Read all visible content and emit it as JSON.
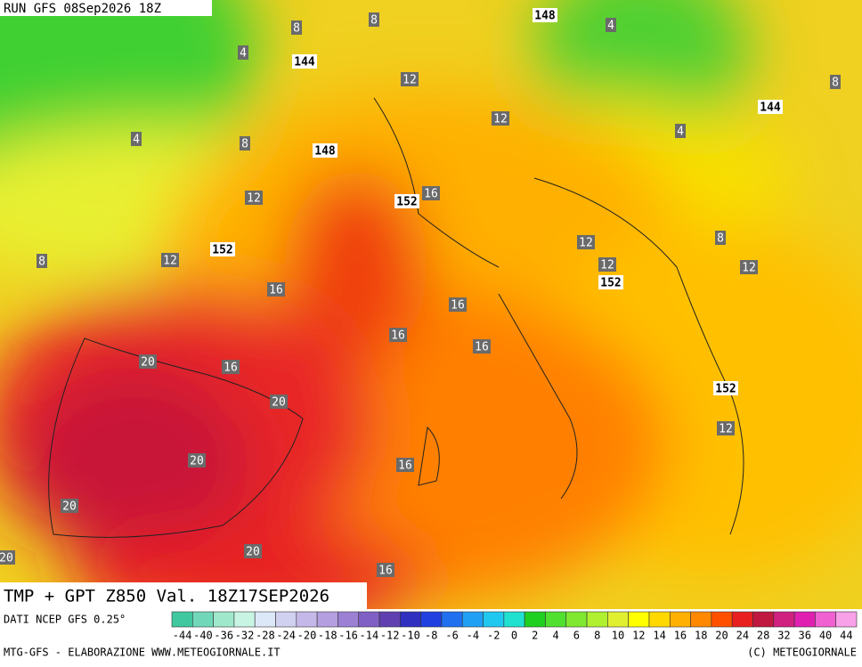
{
  "header": {
    "run": "RUN GFS 08Sep2026 18Z",
    "field": "TMP + GPT Z850 Val. 18Z17SEP2026"
  },
  "footer": {
    "source": "DATI NCEP GFS 0.25°",
    "credit": "MTG-GFS - ELABORAZIONE WWW.METEOGIORNALE.IT",
    "copyright": "(C) METEOGIORNALE"
  },
  "colorbar": {
    "ticks": [
      -44,
      -40,
      -36,
      -32,
      -28,
      -24,
      -20,
      -18,
      -16,
      -14,
      -12,
      -10,
      -8,
      -6,
      -4,
      -2,
      0,
      2,
      4,
      6,
      8,
      10,
      12,
      14,
      16,
      18,
      20,
      24,
      28,
      32,
      36,
      40,
      44
    ],
    "colors": [
      "#40c8a0",
      "#70d8b8",
      "#a0e8cc",
      "#c8f4e4",
      "#dce8f8",
      "#d0d0f0",
      "#c4b8e8",
      "#b4a0e0",
      "#9c80d4",
      "#8060c4",
      "#6040b0",
      "#3030c0",
      "#2040e0",
      "#2070f0",
      "#20a0f4",
      "#20c8f0",
      "#20e0d0",
      "#20d020",
      "#50e030",
      "#80e830",
      "#b0f030",
      "#e0f030",
      "#ffff00",
      "#ffd800",
      "#ffb000",
      "#ff8800",
      "#ff5000",
      "#e82020",
      "#c01840",
      "#d02080",
      "#e020b0",
      "#f060d0",
      "#f8a0e8"
    ]
  },
  "map_labels": {
    "temperature": [
      "8",
      "8",
      "4",
      "4",
      "12",
      "12",
      "4",
      "8",
      "4",
      "8",
      "12",
      "16",
      "12",
      "8",
      "12",
      "12",
      "12",
      "8",
      "16",
      "16",
      "16",
      "16",
      "20",
      "16",
      "20",
      "12",
      "20",
      "16",
      "20",
      "20",
      "20",
      "16"
    ],
    "height": [
      "148",
      "144",
      "148",
      "144",
      "152",
      "152",
      "152",
      "152"
    ]
  }
}
